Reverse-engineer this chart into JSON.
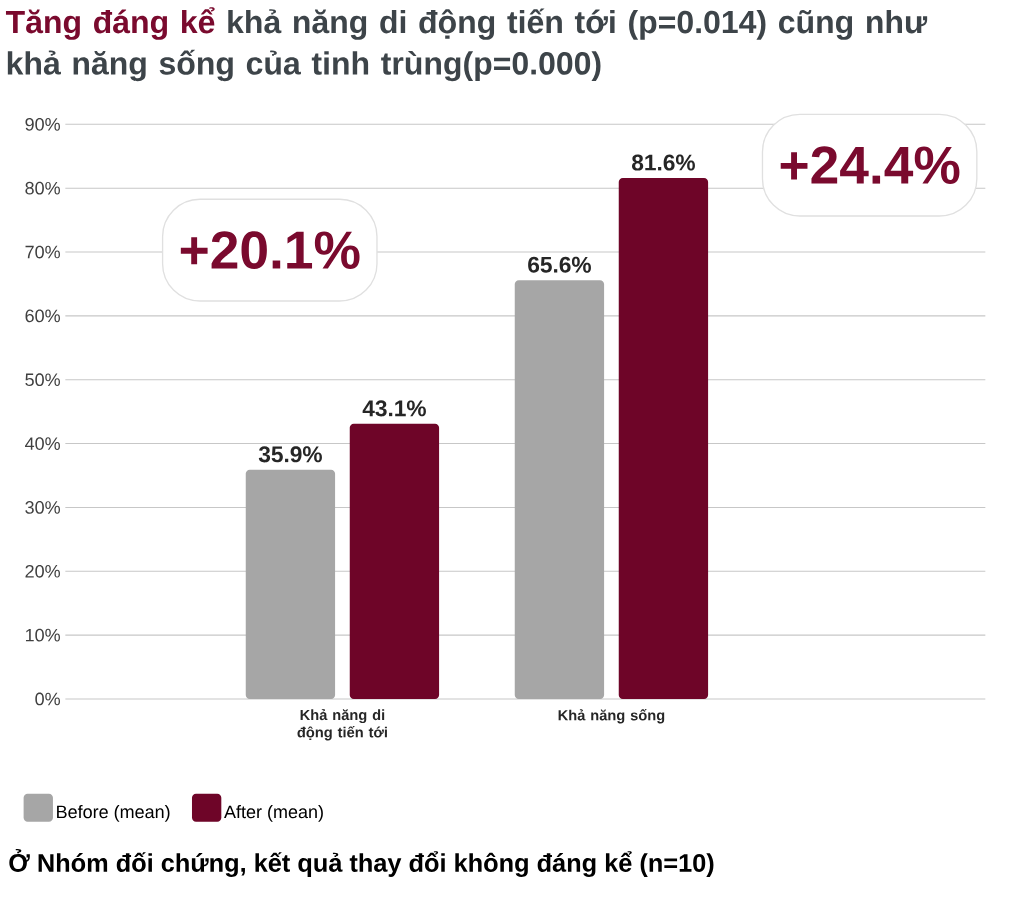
{
  "chart_data": {
    "type": "bar",
    "title": "**Tăng đáng kể** khả năng di động tiến tới (p=0.014) cũng như khả năng sống của tinh trùng(p=0.000)",
    "categories": [
      "Khả năng di động tiến tới",
      "Khả năng sống"
    ],
    "series": [
      {
        "name": "Before (mean)",
        "color": "#a6a6a6",
        "values": [
          35.9,
          65.6
        ],
        "value_labels": [
          "35.9%",
          "65.6%"
        ]
      },
      {
        "name": "After (mean)",
        "color": "#6e0528",
        "values": [
          43.1,
          81.6
        ],
        "value_labels": [
          "43.1%",
          "81.6%"
        ]
      }
    ],
    "grid": "y",
    "legend": "bottom left",
    "ylim": [
      0,
      90
    ],
    "yticks": [
      {
        "value": 0,
        "label": "0%"
      },
      {
        "value": 10,
        "label": "10%"
      },
      {
        "value": 20,
        "label": "20%"
      },
      {
        "value": 30,
        "label": "30%"
      },
      {
        "value": 40,
        "label": "40%"
      },
      {
        "value": 50,
        "label": "50%"
      },
      {
        "value": 60,
        "label": "60%"
      },
      {
        "value": 70,
        "label": "70%"
      },
      {
        "value": 80,
        "label": "80%"
      },
      {
        "value": 90,
        "label": "90%"
      }
    ],
    "annotations": [
      "+20.1%",
      "+24.4%",
      "Ở Nhóm đối chứng, kết quả thay đổi không đáng kể (n=10)"
    ]
  }
}
